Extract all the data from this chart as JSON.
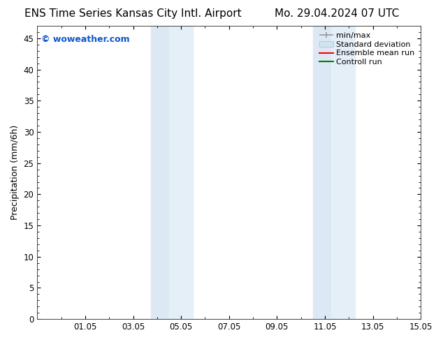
{
  "title_left": "ENS Time Series Kansas City Intl. Airport",
  "title_right": "Mo. 29.04.2024 07 UTC",
  "ylabel": "Precipitation (mm/6h)",
  "ylim": [
    0,
    47
  ],
  "yticks": [
    0,
    5,
    10,
    15,
    20,
    25,
    30,
    35,
    40,
    45
  ],
  "xtick_positions": [
    2,
    4,
    6,
    8,
    10,
    12,
    14,
    16
  ],
  "xtick_labels": [
    "01.05",
    "03.05",
    "05.05",
    "07.05",
    "09.05",
    "11.05",
    "13.05",
    "15.05"
  ],
  "xlim": [
    0,
    16
  ],
  "shaded_bands": [
    {
      "x_start": 4.75,
      "x_end": 5.5,
      "color": "#dce9f5"
    },
    {
      "x_start": 5.5,
      "x_end": 6.5,
      "color": "#e5eff8"
    },
    {
      "x_start": 11.5,
      "x_end": 12.25,
      "color": "#dce9f5"
    },
    {
      "x_start": 12.25,
      "x_end": 13.25,
      "color": "#e5eff8"
    }
  ],
  "watermark_text": "© woweather.com",
  "watermark_color": "#1155cc",
  "background_color": "#ffffff",
  "legend_minmax_color": "#999999",
  "legend_std_color": "#d0e4f0",
  "legend_mean_color": "#ff0000",
  "legend_control_color": "#008000",
  "title_fontsize": 11,
  "label_fontsize": 9,
  "tick_fontsize": 8.5,
  "legend_fontsize": 8,
  "watermark_fontsize": 9
}
